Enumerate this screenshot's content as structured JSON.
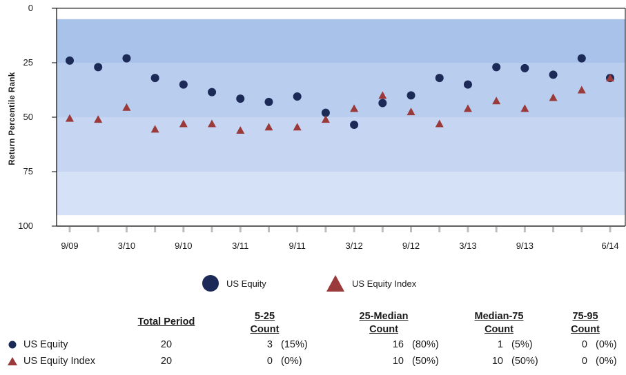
{
  "chart_data": {
    "type": "scatter",
    "title": "",
    "xlabel": "",
    "ylabel": "Return Percentile Rank",
    "y_inverted": true,
    "ylim": [
      0,
      100
    ],
    "y_ticks": [
      "0",
      "25",
      "50",
      "75",
      "100"
    ],
    "x_tick_labels": [
      "9/09",
      "3/10",
      "9/10",
      "3/11",
      "9/11",
      "3/12",
      "9/12",
      "3/13",
      "9/13",
      "6/14"
    ],
    "x": [
      "9/09",
      "12/09",
      "3/10",
      "6/10",
      "9/10",
      "12/10",
      "3/11",
      "6/11",
      "9/11",
      "12/11",
      "3/12",
      "6/12",
      "9/12",
      "12/12",
      "3/13",
      "6/13",
      "9/13",
      "12/13",
      "3/14",
      "6/14"
    ],
    "bands": [
      {
        "range": [
          5,
          25
        ],
        "color": "#a9c2ea"
      },
      {
        "range": [
          25,
          50
        ],
        "color": "#b9cdef"
      },
      {
        "range": [
          50,
          75
        ],
        "color": "#c6d5f2"
      },
      {
        "range": [
          75,
          95
        ],
        "color": "#d5e1f6"
      }
    ],
    "series": [
      {
        "name": "US Equity",
        "marker": "circle",
        "color": "#1b2a57",
        "values": [
          24,
          27,
          23,
          32,
          35,
          38.5,
          41.5,
          43,
          40.5,
          48,
          53.5,
          43.5,
          40,
          32,
          35,
          27,
          27.5,
          30.5,
          23,
          32
        ]
      },
      {
        "name": "US Equity Index",
        "marker": "triangle",
        "color": "#9a3a3a",
        "values": [
          50.5,
          51,
          45.5,
          55.5,
          53,
          53,
          56,
          54.5,
          54.5,
          51,
          46,
          40,
          47.5,
          53,
          46,
          42.5,
          46,
          41,
          37.5,
          32
        ]
      }
    ]
  },
  "legend": {
    "items": [
      {
        "label": "US Equity"
      },
      {
        "label": "US Equity Index"
      }
    ]
  },
  "summary": {
    "headers": {
      "total": "Total Period",
      "c1a": "5-25",
      "c1b": "Count",
      "c2a": "25-Median",
      "c2b": "Count",
      "c3a": "Median-75",
      "c3b": "Count",
      "c4a": "75-95",
      "c4b": "Count"
    },
    "rows": [
      {
        "name": "US Equity",
        "total": "20",
        "c1": "3",
        "p1": "(15%)",
        "c2": "16",
        "p2": "(80%)",
        "c3": "1",
        "p3": "(5%)",
        "c4": "0",
        "p4": "(0%)"
      },
      {
        "name": "US Equity Index",
        "total": "20",
        "c1": "0",
        "p1": "(0%)",
        "c2": "10",
        "p2": "(50%)",
        "c3": "10",
        "p3": "(50%)",
        "c4": "0",
        "p4": "(0%)"
      }
    ]
  }
}
